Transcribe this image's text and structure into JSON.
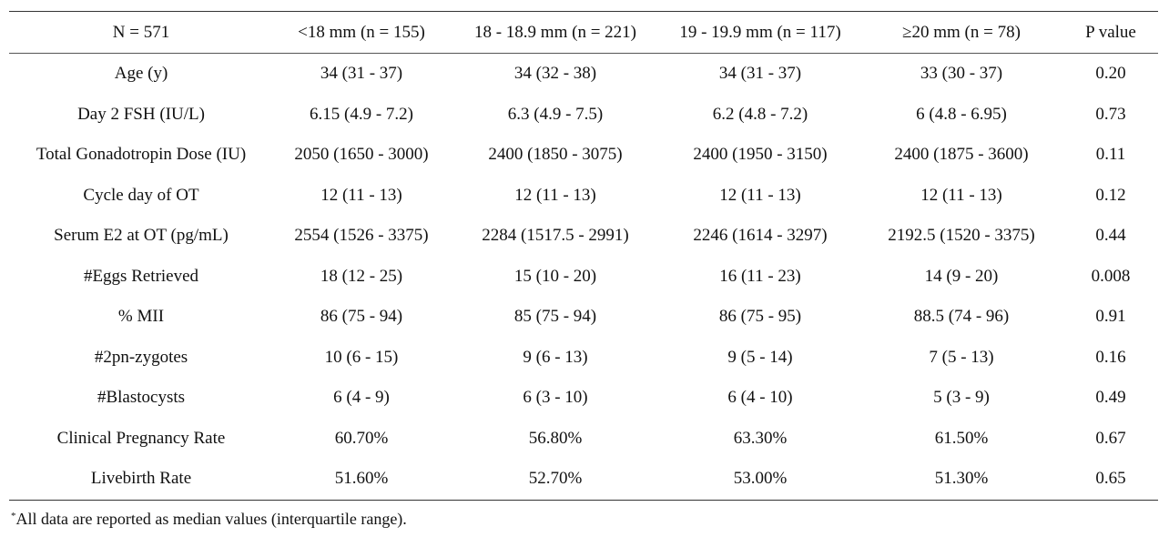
{
  "table": {
    "headers": [
      "N = 571",
      "<18 mm (n = 155)",
      "18 - 18.9 mm (n = 221)",
      "19 - 19.9 mm (n = 117)",
      "≥20 mm (n = 78)",
      "P value"
    ],
    "rows": [
      [
        "Age (y)",
        "34 (31 - 37)",
        "34 (32 - 38)",
        "34 (31 - 37)",
        "33 (30 - 37)",
        "0.20"
      ],
      [
        "Day 2 FSH (IU/L)",
        "6.15 (4.9 - 7.2)",
        "6.3 (4.9 - 7.5)",
        "6.2 (4.8 - 7.2)",
        "6 (4.8 - 6.95)",
        "0.73"
      ],
      [
        "Total Gonadotropin Dose (IU)",
        "2050 (1650 - 3000)",
        "2400 (1850 - 3075)",
        "2400 (1950 - 3150)",
        "2400 (1875 - 3600)",
        "0.11"
      ],
      [
        "Cycle day of OT",
        "12 (11 - 13)",
        "12 (11 - 13)",
        "12 (11 - 13)",
        "12 (11 - 13)",
        "0.12"
      ],
      [
        "Serum E2 at OT (pg/mL)",
        "2554 (1526 - 3375)",
        "2284 (1517.5 - 2991)",
        "2246 (1614 - 3297)",
        "2192.5 (1520 - 3375)",
        "0.44"
      ],
      [
        "#Eggs Retrieved",
        "18 (12 - 25)",
        "15 (10 - 20)",
        "16 (11 - 23)",
        "14 (9 - 20)",
        "0.008"
      ],
      [
        "% MII",
        "86 (75 - 94)",
        "85 (75 - 94)",
        "86 (75 - 95)",
        "88.5 (74 - 96)",
        "0.91"
      ],
      [
        "#2pn-zygotes",
        "10 (6 - 15)",
        "9 (6 - 13)",
        "9 (5 - 14)",
        "7 (5 - 13)",
        "0.16"
      ],
      [
        "#Blastocysts",
        "6 (4 - 9)",
        "6 (3 - 10)",
        "6 (4 - 10)",
        "5 (3 - 9)",
        "0.49"
      ],
      [
        "Clinical Pregnancy Rate",
        "60.70%",
        "56.80%",
        "63.30%",
        "61.50%",
        "0.67"
      ],
      [
        "Livebirth Rate",
        "51.60%",
        "52.70%",
        "53.00%",
        "51.30%",
        "0.65"
      ]
    ]
  },
  "footnote": {
    "marker": "*",
    "text": "All data are reported as median values (interquartile range)."
  }
}
